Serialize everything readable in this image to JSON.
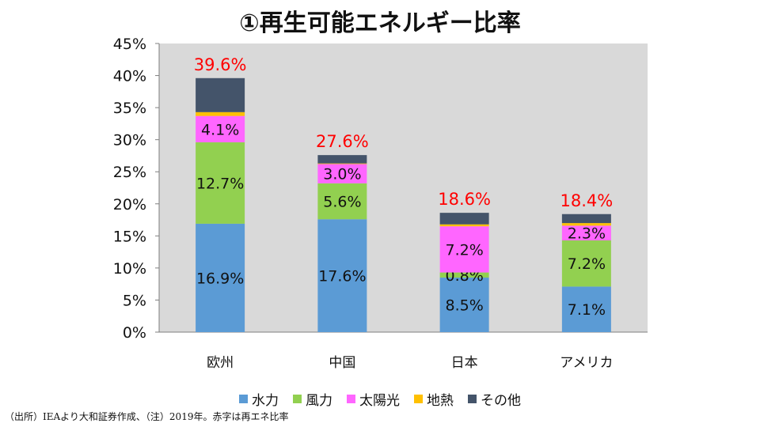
{
  "title": "①再生可能エネルギー比率",
  "footnote": "（出所）IEAより大和証券作成、（注）2019年。赤字は再エネ比率",
  "chart_data": {
    "type": "bar",
    "stacked": true,
    "categories": [
      "欧州",
      "中国",
      "日本",
      "アメリカ"
    ],
    "series": [
      {
        "name": "水力",
        "color": "#5b9bd5",
        "values": [
          16.9,
          17.6,
          8.5,
          7.1
        ],
        "labels": [
          "16.9%",
          "17.6%",
          "8.5%",
          "7.1%"
        ]
      },
      {
        "name": "風力",
        "color": "#92d050",
        "values": [
          12.7,
          5.6,
          0.8,
          7.2
        ],
        "labels": [
          "12.7%",
          "5.6%",
          "0.8%",
          "7.2%"
        ]
      },
      {
        "name": "太陽光",
        "color": "#ff66ff",
        "values": [
          4.1,
          3.0,
          7.2,
          2.3
        ],
        "labels": [
          "4.1%",
          "3.0%",
          "7.2%",
          "2.3%"
        ]
      },
      {
        "name": "地熱",
        "color": "#ffc000",
        "values": [
          0.6,
          0.1,
          0.3,
          0.4
        ],
        "labels": [
          "",
          "",
          "",
          ""
        ]
      },
      {
        "name": "その他",
        "color": "#44546a",
        "values": [
          5.3,
          1.3,
          1.8,
          1.4
        ],
        "labels": [
          "",
          "",
          "",
          ""
        ]
      }
    ],
    "totals": [
      "39.6%",
      "27.6%",
      "18.6%",
      "18.4%"
    ],
    "total_label_color": "#ff0000",
    "ylim": [
      0,
      45
    ],
    "yticks": [
      "0%",
      "5%",
      "10%",
      "15%",
      "20%",
      "25%",
      "30%",
      "35%",
      "40%",
      "45%"
    ],
    "grid": false,
    "plot_background": "#d9d9d9",
    "legend_position": "bottom"
  }
}
